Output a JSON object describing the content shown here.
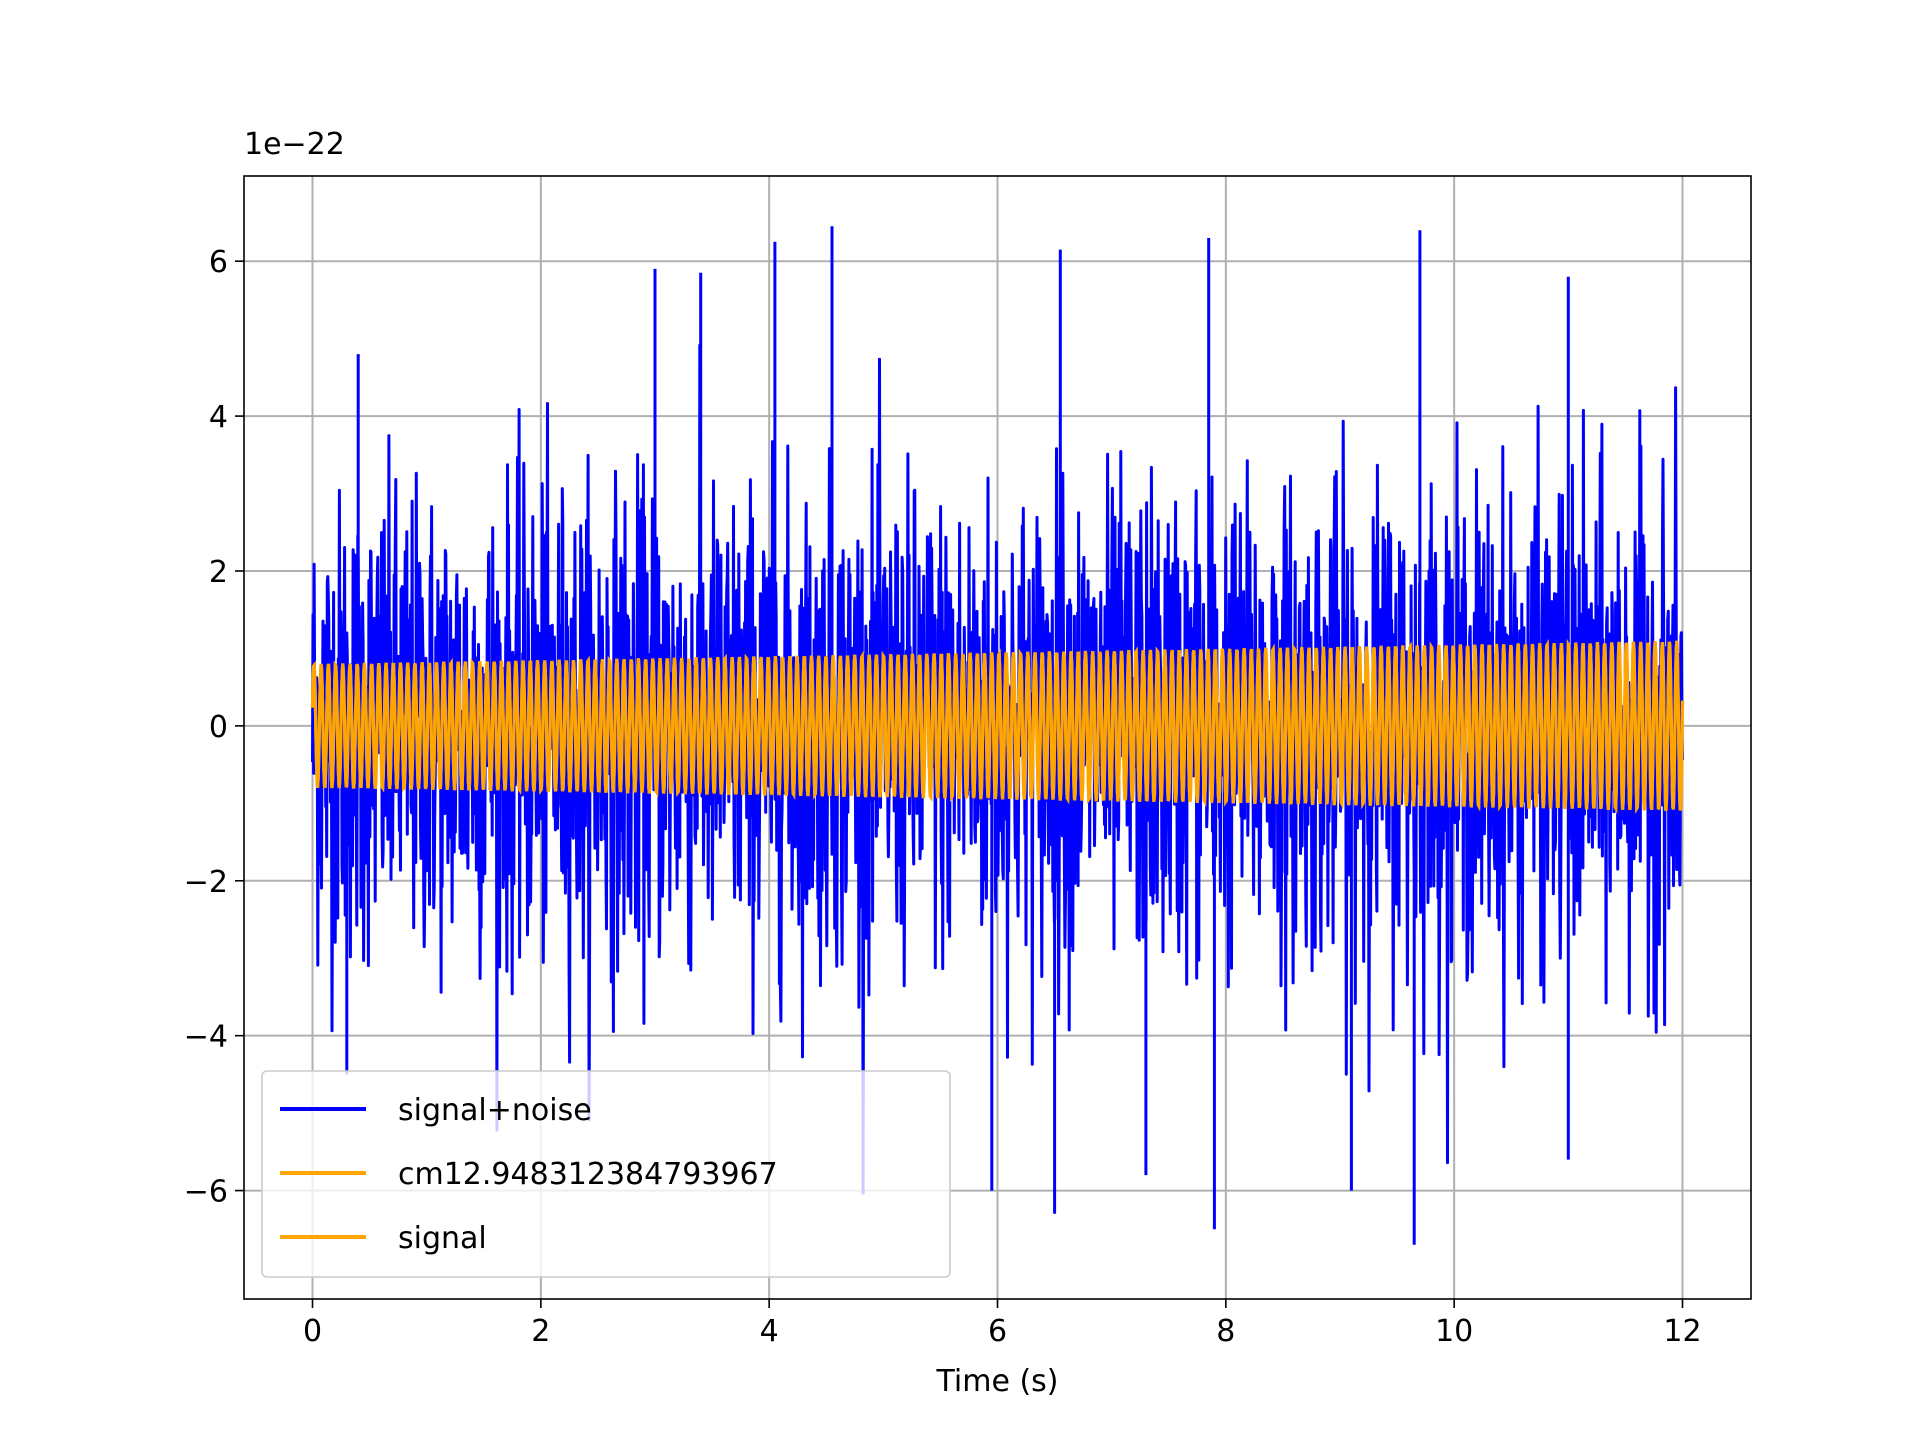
{
  "chart_data": {
    "type": "line",
    "xlabel": "Time (s)",
    "ylabel": "",
    "y_scale_label": "1e−22",
    "xlim": [
      -0.6,
      12.6
    ],
    "ylim": [
      -7.4,
      7.1
    ],
    "xticks": [
      0,
      2,
      4,
      6,
      8,
      10,
      12
    ],
    "xtick_labels": [
      "0",
      "2",
      "4",
      "6",
      "8",
      "10",
      "12"
    ],
    "yticks": [
      -6,
      -4,
      -2,
      0,
      2,
      4,
      6
    ],
    "ytick_labels": [
      "−6",
      "−4",
      "−2",
      "0",
      "2",
      "4",
      "6"
    ],
    "grid": true,
    "legend_position": "lower-left",
    "series": [
      {
        "name": "signal+noise",
        "color": "#0000ff",
        "description": "noisy signal, dense oscillation between approx -6.9 and 6.5 (x 1e-22) over 0-12 s",
        "x_range": [
          0,
          12
        ],
        "approx_envelope": {
          "typical_max": 3.2,
          "typical_min": -3.2,
          "peak_max": 6.5,
          "peak_min": -6.9
        },
        "notable_peaks": [
          {
            "x": 4.55,
            "y": 6.45
          },
          {
            "x": 4.05,
            "y": 6.25
          },
          {
            "x": 9.7,
            "y": 6.4
          },
          {
            "x": 7.85,
            "y": 6.3
          },
          {
            "x": 6.55,
            "y": 6.15
          },
          {
            "x": 11.0,
            "y": 5.8
          },
          {
            "x": 3.0,
            "y": 5.9
          },
          {
            "x": 3.4,
            "y": 5.85
          },
          {
            "x": 0.4,
            "y": 4.8
          }
        ],
        "notable_troughs": [
          {
            "x": 9.65,
            "y": -6.7
          },
          {
            "x": 7.9,
            "y": -6.5
          },
          {
            "x": 6.5,
            "y": -6.3
          },
          {
            "x": 5.95,
            "y": -6.0
          },
          {
            "x": 9.1,
            "y": -6.0
          },
          {
            "x": 7.3,
            "y": -5.8
          },
          {
            "x": 11.0,
            "y": -5.6
          },
          {
            "x": 0.3,
            "y": -4.5
          }
        ]
      },
      {
        "name": "cm12.948312384793967",
        "color": "#ffa500",
        "description": "sinusoid with amplitude growing from approx 0.8 to 1.1 (x 1e-22) over 0-12 s",
        "x_range": [
          0,
          12
        ],
        "amplitude_start": 0.8,
        "amplitude_end": 1.1
      },
      {
        "name": "signal",
        "color": "#ffa500",
        "description": "sinusoid overlapping cm12.948312384793967, amplitude approx 0.8 to 1.1 (x 1e-22)",
        "x_range": [
          0,
          12
        ],
        "amplitude_start": 0.8,
        "amplitude_end": 1.1
      }
    ]
  }
}
